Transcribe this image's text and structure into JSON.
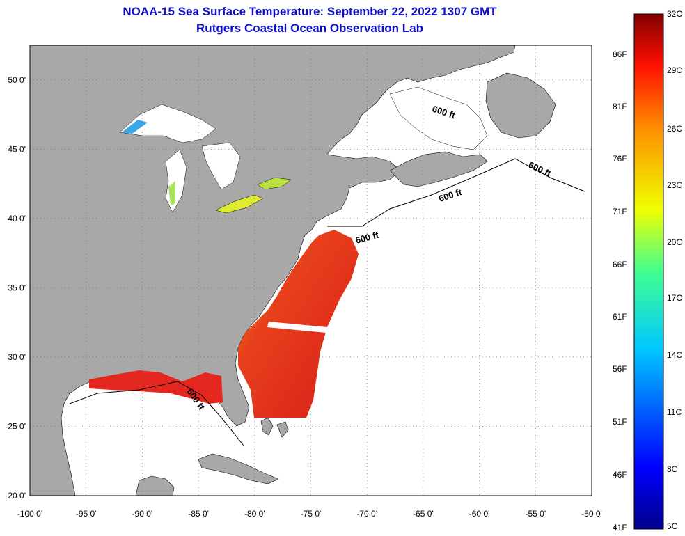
{
  "header": {
    "title": "NOAA-15 Sea Surface Temperature:  September 22, 2022 1307 GMT",
    "subtitle": "Rutgers Coastal Ocean Observation Lab"
  },
  "map": {
    "lon_range": [
      -100,
      -50
    ],
    "lat_range": [
      20,
      52.5
    ],
    "lon_ticks": [
      "-100 0'",
      "-95 0'",
      "-90 0'",
      "-85 0'",
      "-80 0'",
      "-75 0'",
      "-70 0'",
      "-65 0'",
      "-60 0'",
      "-55 0'",
      "-50 0'"
    ],
    "lat_ticks": [
      "20 0'",
      "25 0'",
      "30 0'",
      "35 0'",
      "40 0'",
      "45 0'",
      "50 0'"
    ],
    "contour_label": "600 ft",
    "grid": true,
    "colors": {
      "land": "#a8a8a8",
      "ocean": "#ffffff",
      "warm_water": "#e0281e",
      "title": "#1010c8"
    }
  },
  "colorbar": {
    "fahrenheit": [
      "86F",
      "81F",
      "76F",
      "71F",
      "66F",
      "61F",
      "56F",
      "51F",
      "46F",
      "41F"
    ],
    "celsius": [
      "32C",
      "29C",
      "26C",
      "23C",
      "20C",
      "17C",
      "14C",
      "11C",
      "8C",
      "5C"
    ]
  }
}
